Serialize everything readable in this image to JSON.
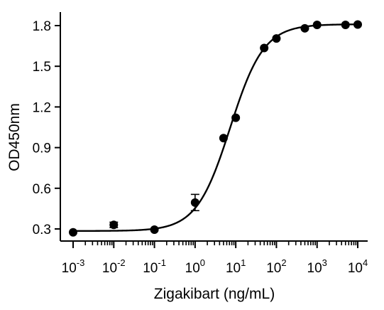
{
  "chart_data": {
    "type": "scatter",
    "title": "",
    "xlabel": "Zigakibart (ng/mL)",
    "ylabel": "OD450nm",
    "x_scale": "log",
    "xlim": [
      0.001,
      10000
    ],
    "ylim": [
      0.2,
      1.9
    ],
    "x_ticks": [
      {
        "base": "10",
        "exp": "-3",
        "value": 0.001
      },
      {
        "base": "10",
        "exp": "-2",
        "value": 0.01
      },
      {
        "base": "10",
        "exp": "-1",
        "value": 0.1
      },
      {
        "base": "10",
        "exp": "0",
        "value": 1
      },
      {
        "base": "10",
        "exp": "1",
        "value": 10
      },
      {
        "base": "10",
        "exp": "2",
        "value": 100
      },
      {
        "base": "10",
        "exp": "3",
        "value": 1000
      },
      {
        "base": "10",
        "exp": "4",
        "value": 10000
      }
    ],
    "y_ticks": [
      {
        "label": "0.3",
        "value": 0.3
      },
      {
        "label": "0.6",
        "value": 0.6
      },
      {
        "label": "0.9",
        "value": 0.9
      },
      {
        "label": "1.2",
        "value": 1.2
      },
      {
        "label": "1.5",
        "value": 1.5
      },
      {
        "label": "1.8",
        "value": 1.8
      }
    ],
    "grid": false,
    "legend": "none",
    "marker_color": "#000000",
    "points": [
      {
        "x": 0.001,
        "y": 0.275,
        "err": 0
      },
      {
        "x": 0.01,
        "y": 0.33,
        "err": 0.02
      },
      {
        "x": 0.1,
        "y": 0.295,
        "err": 0
      },
      {
        "x": 1,
        "y": 0.495,
        "err": 0.06
      },
      {
        "x": 5,
        "y": 0.97,
        "err": 0
      },
      {
        "x": 10,
        "y": 1.12,
        "err": 0
      },
      {
        "x": 50,
        "y": 1.635,
        "err": 0
      },
      {
        "x": 100,
        "y": 1.705,
        "err": 0
      },
      {
        "x": 500,
        "y": 1.78,
        "err": 0
      },
      {
        "x": 1000,
        "y": 1.805,
        "err": 0
      },
      {
        "x": 5000,
        "y": 1.805,
        "err": 0
      },
      {
        "x": 10000,
        "y": 1.808,
        "err": 0
      }
    ],
    "fit": {
      "model": "4PL",
      "bottom": 0.285,
      "top": 1.81,
      "ec50": 7.3,
      "hill": 1.05
    }
  }
}
